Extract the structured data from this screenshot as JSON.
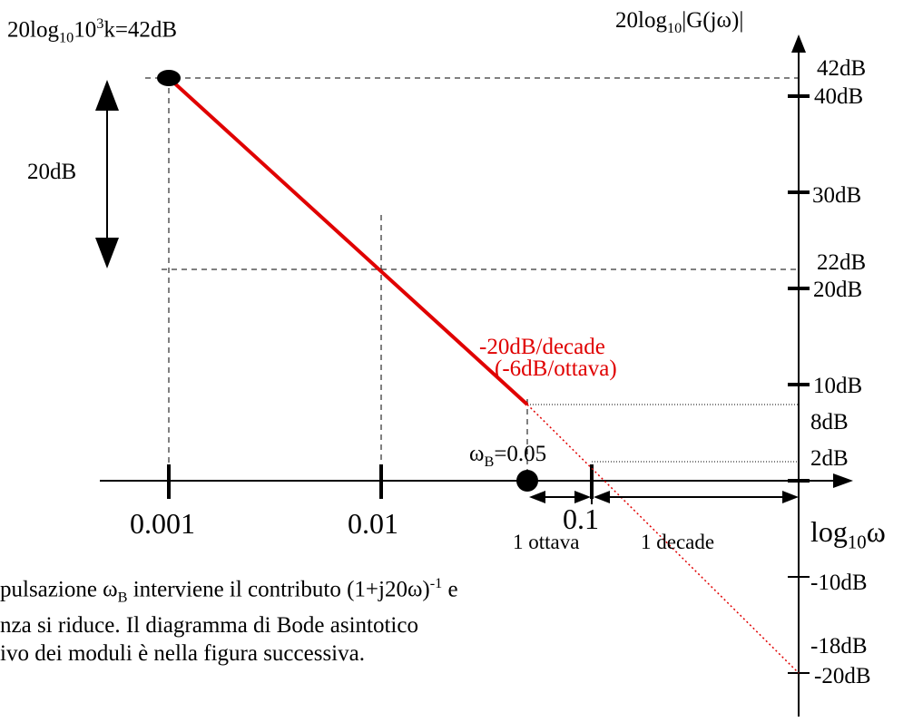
{
  "labels": {
    "formula_prefix": "20log",
    "formula_sub": "10",
    "formula_mid": "10",
    "formula_sup": "3",
    "formula_suffix": "k=42dB",
    "yaxis_prefix": "20log",
    "yaxis_sub": "10",
    "yaxis_suffix": "|G(jω)|",
    "xaxis_prefix": "log",
    "xaxis_sub": "10",
    "xaxis_suffix": "ω",
    "span_20db": "20dB",
    "slope_line1": "-20dB/decade",
    "slope_line2": "(-6dB/ottava)",
    "omega_b_prefix": "ω",
    "omega_b_sub": "B",
    "omega_b_suffix": "=0.05",
    "octave": "1 ottava",
    "decade": "1 decade"
  },
  "y_ticks": [
    {
      "label": "42dB"
    },
    {
      "label": "40dB"
    },
    {
      "label": "30dB"
    },
    {
      "label": "22dB"
    },
    {
      "label": "20dB"
    },
    {
      "label": "10dB"
    },
    {
      "label": "8dB"
    },
    {
      "label": "2dB"
    },
    {
      "label": "-10dB"
    },
    {
      "label": "-18dB"
    },
    {
      "label": "-20dB"
    }
  ],
  "x_ticks": [
    {
      "label": "0.001"
    },
    {
      "label": "0.01"
    },
    {
      "label": "0.1"
    }
  ],
  "caption": {
    "line1_a": "pulsazione ω",
    "line1_sub": "B",
    "line1_b": " interviene il contributo (1+j20ω)",
    "line1_sup": "-1",
    "line1_c": " e",
    "line2": "nza si riduce. Il diagramma di Bode asintotico",
    "line3": "ivo dei moduli è nella figura successiva."
  },
  "colors": {
    "asymptote": "#e00000",
    "axis": "#000000"
  }
}
